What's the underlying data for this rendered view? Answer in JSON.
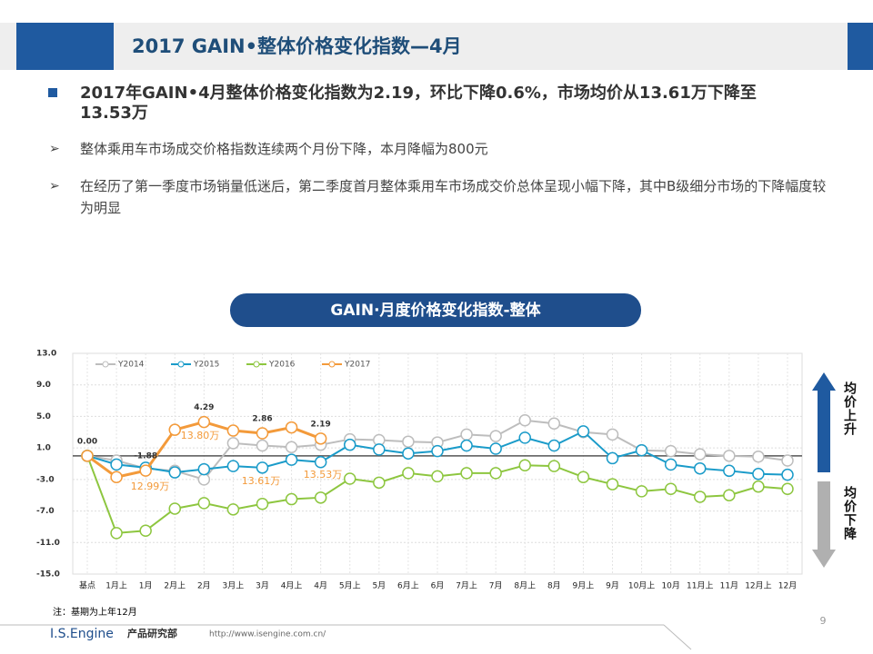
{
  "header": {
    "title": "2017 GAIN•整体价格变化指数—4月"
  },
  "bullets": {
    "main": "2017年GAIN•4月整体价格变化指数为2.19，环比下降0.6%，市场均价从13.61万下降至13.53万",
    "sub": [
      "整体乘用车市场成交价格指数连续两个月份下降，本月降幅为800元",
      "在经历了第一季度市场销量低迷后，第二季度首月整体乘用车市场成交价总体呈现小幅下降，其中B级细分市场的下降幅度较为明显"
    ]
  },
  "chart_data": {
    "type": "line",
    "title": "GAIN·月度价格变化指数-整体",
    "categories": [
      "基点",
      "1月上",
      "1月",
      "2月上",
      "2月",
      "3月上",
      "3月",
      "4月上",
      "4月",
      "5月上",
      "5月",
      "6月上",
      "6月",
      "7月上",
      "7月",
      "8月上",
      "8月",
      "9月上",
      "9月",
      "10月上",
      "10月",
      "11月上",
      "11月",
      "12月上",
      "12月"
    ],
    "series": [
      {
        "name": "Y2014",
        "color": "#bdbdbd",
        "values": [
          0,
          -0.6,
          -1.6,
          -1.9,
          -3.0,
          1.6,
          1.3,
          1.1,
          1.4,
          2.1,
          2.0,
          1.8,
          1.7,
          2.7,
          2.5,
          4.5,
          4.1,
          3.0,
          2.7,
          0.7,
          0.6,
          0.2,
          0,
          -0.1,
          -0.6
        ]
      },
      {
        "name": "Y2015",
        "color": "#1a9bc9",
        "values": [
          0,
          -1.1,
          -1.5,
          -2.1,
          -1.7,
          -1.3,
          -1.5,
          -0.5,
          -0.8,
          1.4,
          0.8,
          0.3,
          0.6,
          1.3,
          0.9,
          2.3,
          1.3,
          3.1,
          -0.3,
          0.7,
          -1.1,
          -1.6,
          -1.9,
          -2.3,
          -2.4
        ]
      },
      {
        "name": "Y2016",
        "color": "#8dc63f",
        "values": [
          0,
          -9.8,
          -9.5,
          -6.7,
          -6.0,
          -6.8,
          -6.1,
          -5.5,
          -5.3,
          -2.9,
          -3.4,
          -2.2,
          -2.6,
          -2.2,
          -2.2,
          -1.2,
          -1.3,
          -2.7,
          -3.6,
          -4.5,
          -4.2,
          -5.2,
          -5.0,
          -3.9,
          -4.2
        ]
      },
      {
        "name": "Y2017",
        "color": "#f39a3a",
        "values": [
          0,
          -2.7,
          -1.88,
          3.3,
          4.29,
          3.2,
          2.86,
          3.6,
          2.19,
          null,
          null,
          null,
          null,
          null,
          null,
          null,
          null,
          null,
          null,
          null,
          null,
          null,
          null,
          null,
          null
        ],
        "value_labels": [
          "0.00",
          null,
          "-1.88",
          null,
          "4.29",
          null,
          "2.86",
          null,
          "2.19",
          null,
          null,
          null,
          null,
          null,
          null,
          null,
          null,
          null,
          null,
          null,
          null,
          null,
          null,
          null,
          null
        ]
      }
    ],
    "ylim": [
      -15,
      13
    ],
    "yticks": [
      {
        "value": 13,
        "label": "13.0"
      },
      {
        "value": 9,
        "label": "9.0"
      },
      {
        "value": 5,
        "label": "5.0"
      },
      {
        "value": 1,
        "label": "1.0"
      },
      {
        "value": -3,
        "label": "-3.0"
      },
      {
        "value": -7,
        "label": "-7.0"
      },
      {
        "value": -11,
        "label": "-11.0"
      },
      {
        "value": -15,
        "label": "-15.0"
      }
    ],
    "grid": true,
    "legend": "top-left",
    "annotations": [
      "13.80万",
      "12.99万",
      "13.61万",
      "13.53万"
    ],
    "note": "注：基期为上年12月"
  },
  "arrows": {
    "up": "均价上升",
    "down": "均价下降"
  },
  "footer": {
    "brand": "I.S.Engine",
    "dept": "产品研究部",
    "url": "http://www.isengine.com.cn/",
    "page": "9"
  }
}
